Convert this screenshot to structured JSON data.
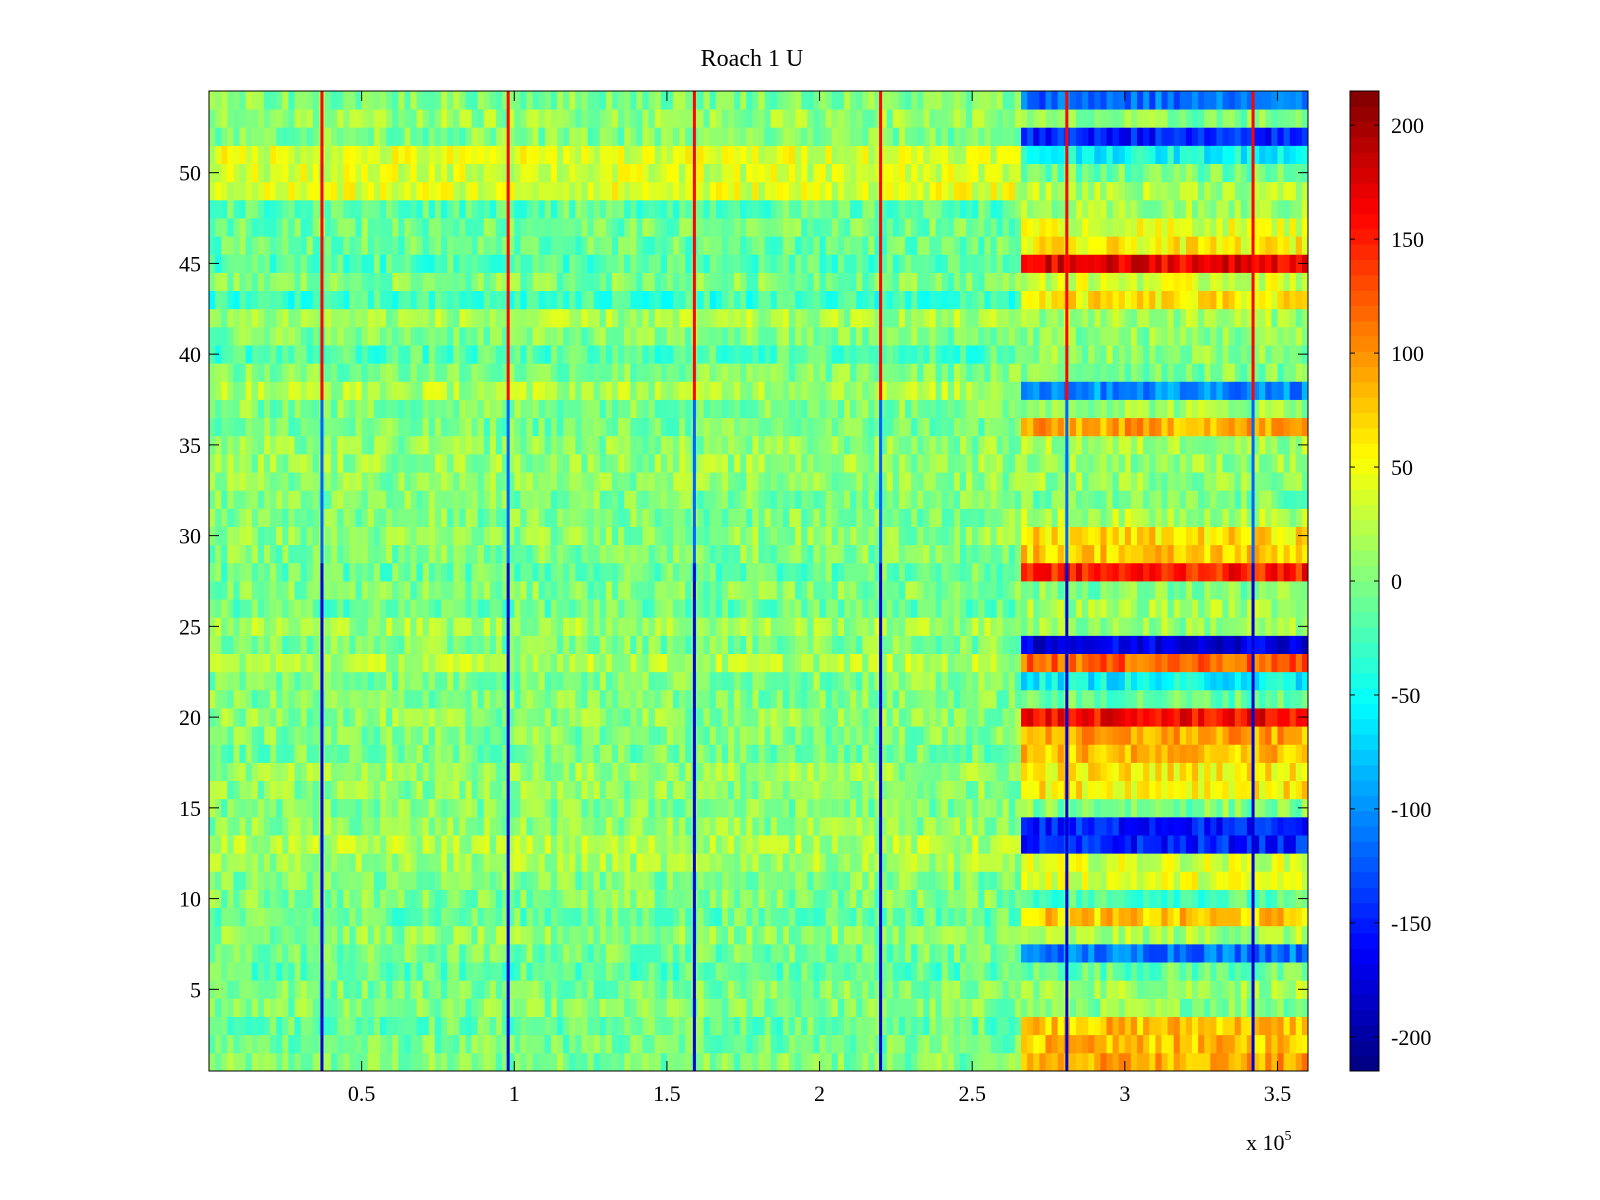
{
  "chart_data": {
    "type": "heatmap",
    "title": "Roach 1 U",
    "xlabel": "",
    "ylabel": "",
    "x_multiplier_label": {
      "base": "x 10",
      "exponent": "5"
    },
    "xlim": [
      0,
      3.6
    ],
    "ylim": [
      0.5,
      54.5
    ],
    "x_ticks": [
      0.5,
      1,
      1.5,
      2,
      2.5,
      3,
      3.5
    ],
    "x_tick_labels": [
      "0.5",
      "1",
      "1.5",
      "2",
      "2.5",
      "3",
      "3.5"
    ],
    "y_ticks": [
      5,
      10,
      15,
      20,
      25,
      30,
      35,
      40,
      45,
      50
    ],
    "y_tick_labels": [
      "5",
      "10",
      "15",
      "20",
      "25",
      "30",
      "35",
      "40",
      "45",
      "50"
    ],
    "n_rows": 54,
    "colorbar": {
      "colormap": "jet",
      "clim": [
        -215,
        215
      ],
      "ticks": [
        -200,
        -150,
        -100,
        -50,
        0,
        50,
        100,
        150,
        200
      ],
      "tick_labels": [
        "-200",
        "-150",
        "-100",
        "-50",
        "0",
        "50",
        "100",
        "150",
        "200"
      ]
    },
    "regime_change_x": 2.67,
    "spike_columns_x": [
      0.37,
      0.98,
      1.59,
      2.2,
      2.81,
      3.42
    ],
    "row_means_early": [
      0,
      -5,
      -10,
      0,
      0,
      -15,
      -5,
      5,
      -10,
      0,
      0,
      15,
      20,
      5,
      0,
      5,
      10,
      -5,
      0,
      5,
      0,
      0,
      20,
      0,
      15,
      -10,
      0,
      -10,
      0,
      5,
      0,
      0,
      5,
      10,
      5,
      -5,
      0,
      20,
      0,
      -20,
      0,
      15,
      -30,
      0,
      -20,
      -10,
      -5,
      -15,
      40,
      35,
      40,
      0,
      10,
      0
    ],
    "row_means_late": [
      90,
      80,
      80,
      5,
      15,
      -10,
      -110,
      15,
      75,
      -20,
      40,
      35,
      -150,
      -150,
      0,
      60,
      60,
      80,
      90,
      160,
      -10,
      -55,
      120,
      -170,
      10,
      15,
      0,
      150,
      75,
      65,
      20,
      -5,
      10,
      10,
      15,
      90,
      15,
      -100,
      0,
      5,
      5,
      15,
      60,
      35,
      170,
      55,
      40,
      10,
      20,
      -5,
      -50,
      -150,
      0,
      -115
    ]
  }
}
